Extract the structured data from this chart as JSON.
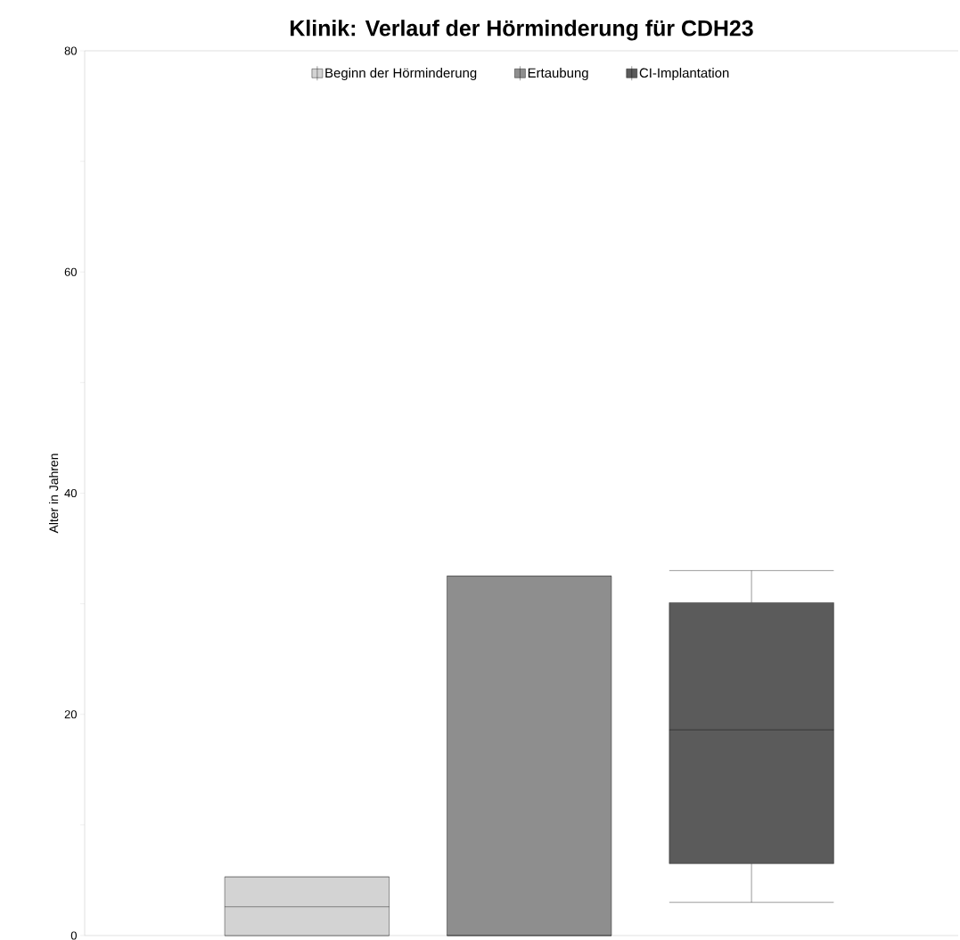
{
  "chart_data": {
    "type": "box",
    "title": "Klinik: Verlauf der Hörminderung für CDH23",
    "ylabel": "Alter in Jahren",
    "categories": [
      null
    ],
    "ylim": [
      0,
      80
    ],
    "yticks": [
      0,
      {
        "value": 10,
        "label": null
      },
      20,
      {
        "value": 30,
        "label": null
      },
      40,
      {
        "value": 50,
        "label": null
      },
      60,
      {
        "value": 70,
        "label": null
      },
      80
    ],
    "legend": "top",
    "series": [
      {
        "name": "Beginn der Hörminderung",
        "color": "#d3d3d3",
        "boxes": [
          {
            "low": 0,
            "q1": 0,
            "median": 2.6,
            "q3": 5.3,
            "high": 5.3
          }
        ]
      },
      {
        "name": "Ertaubung",
        "color": "#8e8e8e",
        "boxes": [
          {
            "low": 0,
            "q1": 0,
            "median": 0,
            "q3": 32.5,
            "high": 32.5
          }
        ]
      },
      {
        "name": "CI-Implantation",
        "color": "#5b5b5b",
        "boxes": [
          {
            "low": 3.0,
            "q1": 6.5,
            "median": 18.6,
            "q3": 30.1,
            "high": 33.0
          }
        ]
      }
    ]
  }
}
